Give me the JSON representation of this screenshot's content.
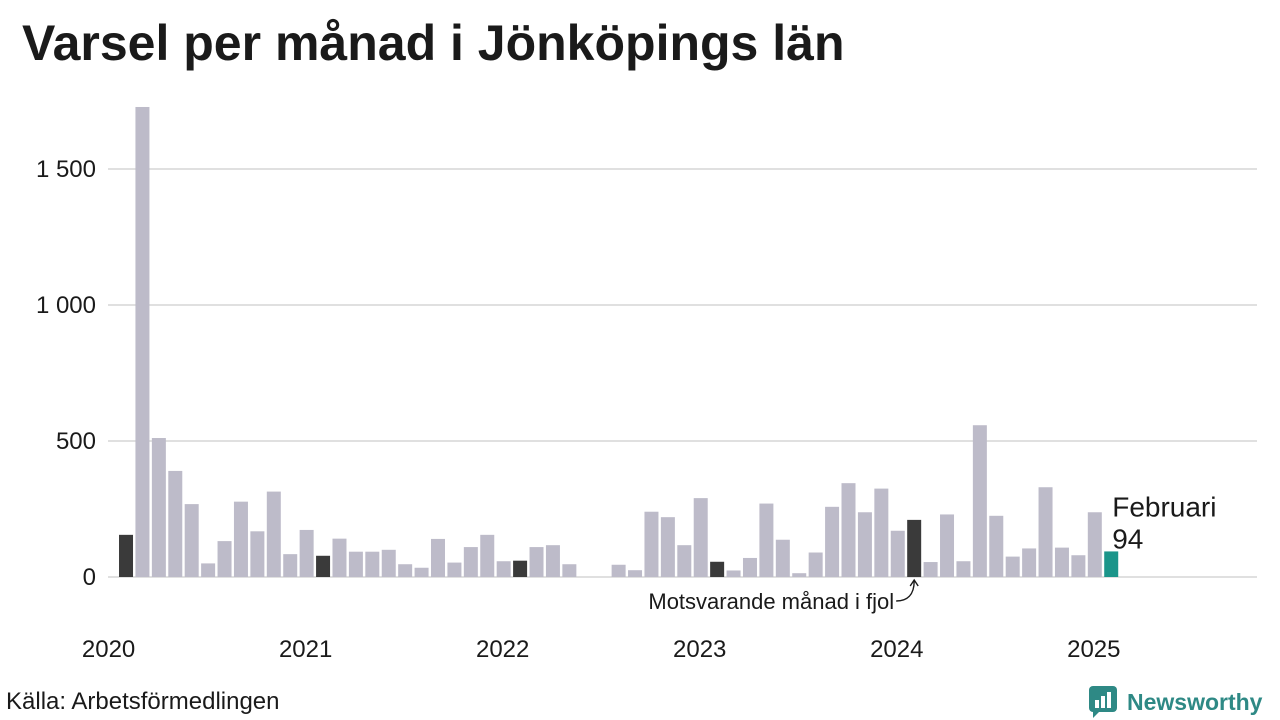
{
  "source": "Källa: Arbetsförmedlingen",
  "logo": {
    "text": "Newsworthy",
    "icon": "newsworthy-logo-icon"
  },
  "colors": {
    "bar": "#bdbbc9",
    "same_month_previous_years": "#3a3a3a",
    "current": "#1b958a",
    "grid": "#e0e0e0",
    "text": "#1a1a1a",
    "brand": "#2e8985"
  },
  "chart_data": {
    "type": "bar",
    "title": "Varsel per månad i Jönköpings län",
    "x": [
      "2020-01",
      "2020-02",
      "2020-03",
      "2020-04",
      "2020-05",
      "2020-06",
      "2020-07",
      "2020-08",
      "2020-09",
      "2020-10",
      "2020-11",
      "2020-12",
      "2021-01",
      "2021-02",
      "2021-03",
      "2021-04",
      "2021-05",
      "2021-06",
      "2021-07",
      "2021-08",
      "2021-09",
      "2021-10",
      "2021-11",
      "2021-12",
      "2022-01",
      "2022-02",
      "2022-03",
      "2022-04",
      "2022-05",
      "2022-06",
      "2022-07",
      "2022-08",
      "2022-09",
      "2022-10",
      "2022-11",
      "2022-12",
      "2023-01",
      "2023-02",
      "2023-03",
      "2023-04",
      "2023-05",
      "2023-06",
      "2023-07",
      "2023-08",
      "2023-09",
      "2023-10",
      "2023-11",
      "2023-12",
      "2024-01",
      "2024-02",
      "2024-03",
      "2024-04",
      "2024-05",
      "2024-06",
      "2024-07",
      "2024-08",
      "2024-09",
      "2024-10",
      "2024-11",
      "2024-12",
      "2025-01",
      "2025-02"
    ],
    "values": [
      0,
      155,
      1728,
      511,
      390,
      268,
      50,
      132,
      277,
      168,
      314,
      84,
      173,
      78,
      141,
      93,
      93,
      100,
      47,
      34,
      140,
      53,
      110,
      155,
      58,
      60,
      110,
      117,
      47,
      0,
      0,
      45,
      25,
      240,
      220,
      117,
      290,
      56,
      24,
      70,
      270,
      137,
      14,
      90,
      258,
      345,
      238,
      325,
      170,
      210,
      55,
      230,
      58,
      558,
      225,
      75,
      105,
      330,
      108,
      80,
      238,
      94
    ],
    "xlim": [
      "2020-01",
      "2025-12"
    ],
    "ylim": [
      0,
      1750
    ],
    "y_ticks": [
      0,
      500,
      1000,
      1500
    ],
    "y_tick_labels": [
      "0",
      "500",
      "1 000",
      "1 500"
    ],
    "x_ticks": [
      "2020-01",
      "2021-01",
      "2022-01",
      "2023-01",
      "2024-01",
      "2025-01"
    ],
    "x_tick_labels": [
      "2020",
      "2021",
      "2022",
      "2023",
      "2024",
      "2025"
    ],
    "grid": true,
    "emphasized": [
      "2020-02",
      "2021-02",
      "2022-02",
      "2023-02",
      "2024-02"
    ],
    "current": "2025-02",
    "current_label": {
      "month": "Februari",
      "value": "94"
    },
    "annotation": {
      "text": "Motsvarande månad i fjol",
      "target": "2024-02"
    }
  }
}
